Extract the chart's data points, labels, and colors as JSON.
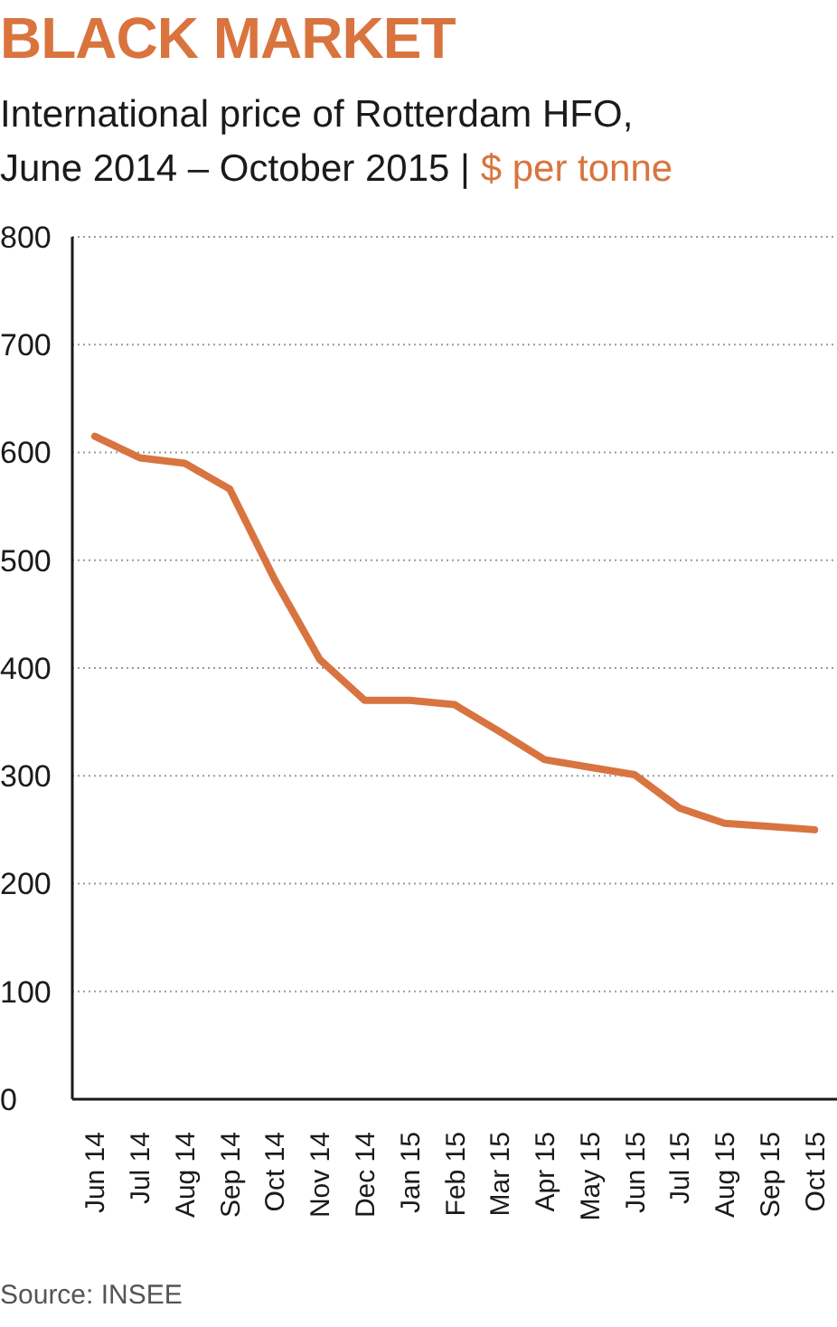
{
  "chart_data": {
    "type": "line",
    "title": "BLACK MARKET",
    "subtitle": "International price of Rotterdam HFO, June 2014 – October 2015 |",
    "ylabel": "$ per tonne",
    "annotations": [
      "Source: INSEE"
    ],
    "categories": [
      "Jun 14",
      "Jul 14",
      "Aug 14",
      "Sep 14",
      "Oct 14",
      "Nov 14",
      "Dec 14",
      "Jan 15",
      "Feb 15",
      "Mar 15",
      "Apr 15",
      "May 15",
      "Jun 15",
      "Jul 15",
      "Aug 15",
      "Sep 15",
      "Oct 15"
    ],
    "series": [
      {
        "color": "#d87440",
        "values": [
          615,
          595,
          590,
          566,
          482,
          408,
          370,
          370,
          366,
          341,
          315,
          308,
          301,
          270,
          256,
          253,
          250
        ]
      }
    ],
    "ylim": [
      0,
      800
    ],
    "yticks": [
      0,
      100,
      200,
      300,
      400,
      500,
      600,
      700,
      800
    ],
    "grid": "y",
    "marker": "none",
    "line_style": "solid"
  }
}
